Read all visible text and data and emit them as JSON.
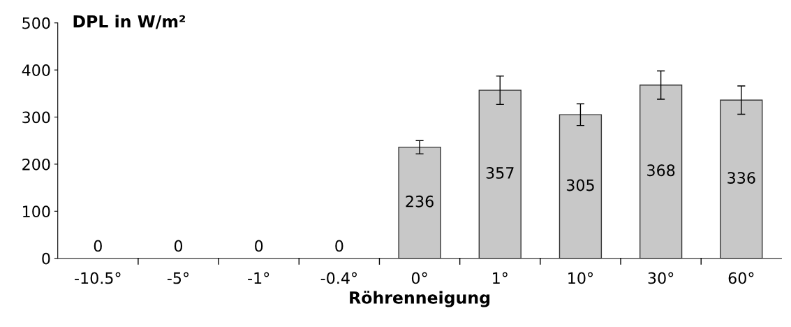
{
  "chart_data": {
    "type": "bar",
    "ylabel": "DPL in W/m²",
    "xlabel": "Röhrenneigung",
    "categories": [
      "-10.5°",
      "-5°",
      "-1°",
      "-0.4°",
      "0°",
      "1°",
      "10°",
      "30°",
      "60°"
    ],
    "values": [
      0,
      0,
      0,
      0,
      236,
      357,
      305,
      368,
      336
    ],
    "errors": [
      null,
      null,
      null,
      null,
      14,
      30,
      23,
      30,
      30
    ],
    "color": "#c8c8c8",
    "data_labels": true,
    "ylim": [
      0,
      500
    ],
    "yticks": [
      0,
      100,
      200,
      300,
      400,
      500
    ],
    "grid": false,
    "legend": false
  }
}
